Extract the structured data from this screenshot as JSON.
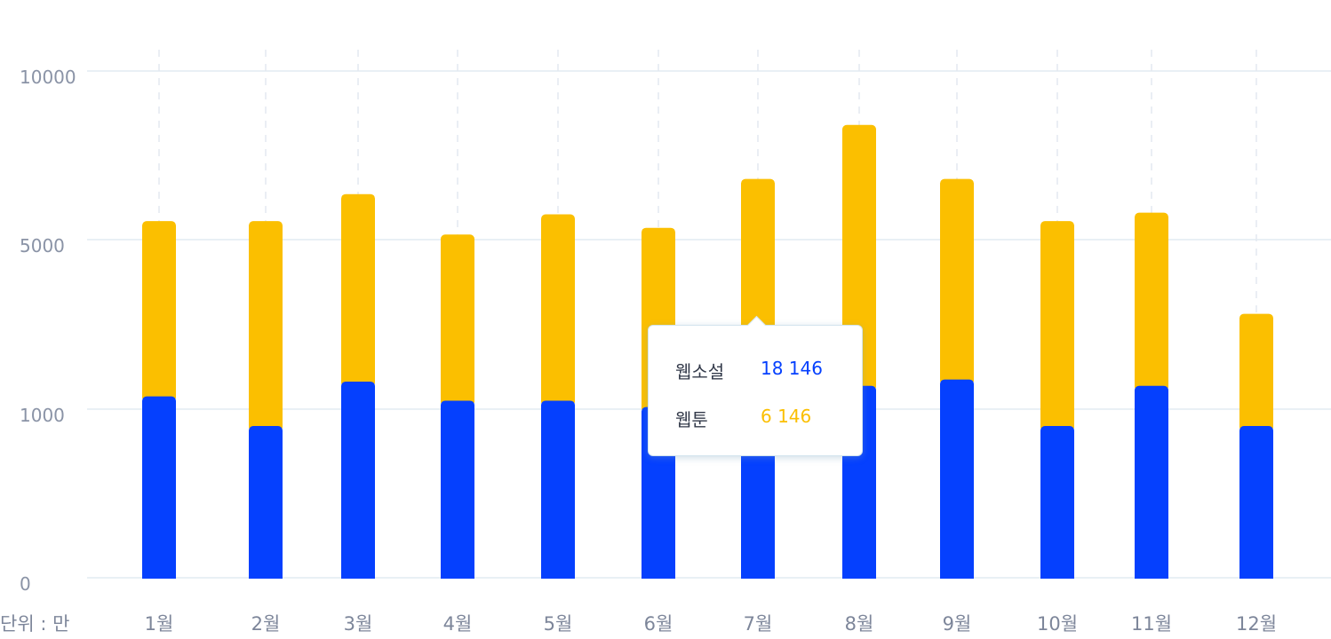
{
  "chart_data": {
    "type": "bar",
    "stacked": true,
    "categories": [
      "1월",
      "2월",
      "3월",
      "4월",
      "5월",
      "6월",
      "7월",
      "8월",
      "9월",
      "10월",
      "11월",
      "12월"
    ],
    "series": [
      {
        "name": "웹소설",
        "color": "#0540fe",
        "values": [
          1300,
          900,
          1650,
          1200,
          1200,
          1050,
          1450,
          1550,
          1700,
          900,
          1550,
          900
        ]
      },
      {
        "name": "웹툰",
        "color": "#fbbf00",
        "values": [
          4250,
          4650,
          4700,
          3950,
          4550,
          4300,
          5350,
          6850,
          5100,
          4650,
          4250,
          2350
        ]
      }
    ],
    "yticks": [
      "0",
      "1000",
      "5000",
      "10000"
    ],
    "ytick_values": [
      0,
      1000,
      5000,
      10000
    ],
    "unit_label": "단위 : 만",
    "grid": true
  },
  "tooltip": {
    "rows": [
      {
        "label": "웹소설",
        "value": "18 146",
        "color": "#0540fe"
      },
      {
        "label": "웹툰",
        "value": "6 146",
        "color": "#fbbf00"
      }
    ]
  }
}
